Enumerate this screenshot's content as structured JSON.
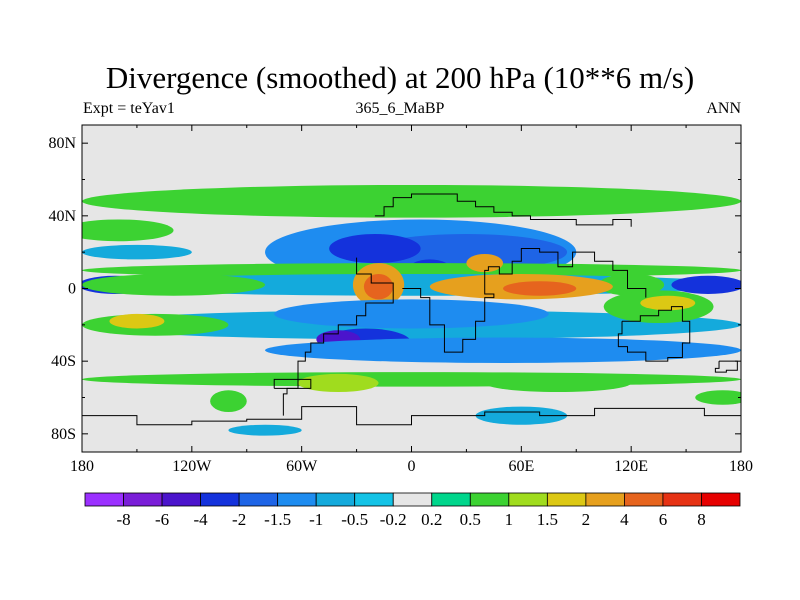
{
  "title": "Divergence (smoothed) at 200 hPa (10**6 m/s)",
  "left_label": "Expt = teYav1",
  "center_label": "365_6_MaBP",
  "right_label": "ANN",
  "chart_data": {
    "type": "heatmap",
    "projection": "cylindrical-equidistant",
    "variable": "Divergence (smoothed) at 200 hPa",
    "units": "10**6 m/s",
    "x_ticks": [
      "180",
      "120W",
      "60W",
      "0",
      "60E",
      "120E",
      "180"
    ],
    "x_tick_values": [
      -180,
      -120,
      -60,
      0,
      60,
      120,
      180
    ],
    "y_ticks": [
      "80N",
      "40N",
      "0",
      "40S",
      "80S"
    ],
    "y_tick_values": [
      80,
      40,
      0,
      -40,
      -80
    ],
    "xlim": [
      -180,
      180
    ],
    "ylim": [
      -90,
      90
    ],
    "colorbar": {
      "levels": [
        "-8",
        "-6",
        "-4",
        "-2",
        "-1.5",
        "-1",
        "-0.5",
        "-0.2",
        "0.2",
        "0.5",
        "1",
        "1.5",
        "2",
        "4",
        "6",
        "8"
      ],
      "colors": [
        "#9b30ff",
        "#7a1ed8",
        "#4b14cc",
        "#1432dc",
        "#1e64e6",
        "#1e8cf0",
        "#14aadc",
        "#14c3e6",
        "#e6e6e6",
        "#00d68c",
        "#3cd232",
        "#a0dc1e",
        "#dcc814",
        "#e6a01e",
        "#e6641e",
        "#e63214",
        "#e60000"
      ]
    },
    "features": [
      {
        "kind": "ellipse",
        "lon": 0,
        "lat": 48,
        "rlon": 180,
        "rlat": 9,
        "value": 0.6
      },
      {
        "kind": "ellipse",
        "lon": -160,
        "lat": 32,
        "rlon": 30,
        "rlat": 6,
        "value": 0.6
      },
      {
        "kind": "ellipse",
        "lon": -150,
        "lat": 20,
        "rlon": 30,
        "rlat": 4,
        "value": -0.8
      },
      {
        "kind": "ellipse",
        "lon": 5,
        "lat": 20,
        "rlon": 85,
        "rlat": 18,
        "value": -1.2
      },
      {
        "kind": "ellipse",
        "lon": 30,
        "lat": 20,
        "rlon": 55,
        "rlat": 10,
        "value": -1.8
      },
      {
        "kind": "ellipse",
        "lon": -20,
        "lat": 22,
        "rlon": 25,
        "rlat": 8,
        "value": -3
      },
      {
        "kind": "ellipse",
        "lon": 10,
        "lat": 10,
        "rlon": 12,
        "rlat": 6,
        "value": -3
      },
      {
        "kind": "ellipse",
        "lon": 0,
        "lat": 10,
        "rlon": 180,
        "rlat": 4,
        "value": 0.7
      },
      {
        "kind": "ellipse",
        "lon": 0,
        "lat": 2,
        "rlon": 180,
        "rlat": 6,
        "value": -0.6
      },
      {
        "kind": "ellipse",
        "lon": -162,
        "lat": 2,
        "rlon": 20,
        "rlat": 5,
        "value": -2.5
      },
      {
        "kind": "ellipse",
        "lon": 162,
        "lat": 2,
        "rlon": 20,
        "rlat": 5,
        "value": -2.5
      },
      {
        "kind": "ellipse",
        "lon": -130,
        "lat": 2,
        "rlon": 50,
        "rlat": 6,
        "value": 0.7
      },
      {
        "kind": "ellipse",
        "lon": 120,
        "lat": 2,
        "rlon": 18,
        "rlat": 6,
        "value": 0.7
      },
      {
        "kind": "ellipse",
        "lon": -18,
        "lat": 2,
        "rlon": 14,
        "rlat": 12,
        "value": 3.5
      },
      {
        "kind": "ellipse",
        "lon": -18,
        "lat": 1,
        "rlon": 8,
        "rlat": 7,
        "value": 5
      },
      {
        "kind": "ellipse",
        "lon": 60,
        "lat": 1,
        "rlon": 50,
        "rlat": 7,
        "value": 2.5
      },
      {
        "kind": "ellipse",
        "lon": 70,
        "lat": 0,
        "rlon": 20,
        "rlat": 4,
        "value": 4.5
      },
      {
        "kind": "ellipse",
        "lon": 40,
        "lat": 14,
        "rlon": 10,
        "rlat": 5,
        "value": 2.2
      },
      {
        "kind": "ellipse",
        "lon": 0,
        "lat": -20,
        "rlon": 180,
        "rlat": 8,
        "value": -0.6
      },
      {
        "kind": "ellipse",
        "lon": 0,
        "lat": -14,
        "rlon": 75,
        "rlat": 8,
        "value": -1.2
      },
      {
        "kind": "ellipse",
        "lon": -140,
        "lat": -20,
        "rlon": 40,
        "rlat": 6,
        "value": 0.7
      },
      {
        "kind": "ellipse",
        "lon": -150,
        "lat": -18,
        "rlon": 15,
        "rlat": 4,
        "value": 1.7
      },
      {
        "kind": "ellipse",
        "lon": -25,
        "lat": -30,
        "rlon": 25,
        "rlat": 8,
        "value": -3
      },
      {
        "kind": "ellipse",
        "lon": -40,
        "lat": -28,
        "rlon": 12,
        "rlat": 5,
        "value": -5
      },
      {
        "kind": "ellipse",
        "lon": 50,
        "lat": -34,
        "rlon": 130,
        "rlat": 7,
        "value": -1.2
      },
      {
        "kind": "ellipse",
        "lon": 135,
        "lat": -10,
        "rlon": 30,
        "rlat": 9,
        "value": 0.7
      },
      {
        "kind": "ellipse",
        "lon": 140,
        "lat": -8,
        "rlon": 15,
        "rlat": 4,
        "value": 1.7
      },
      {
        "kind": "ellipse",
        "lon": 0,
        "lat": -50,
        "rlon": 180,
        "rlat": 4,
        "value": 0.6
      },
      {
        "kind": "ellipse",
        "lon": -40,
        "lat": -52,
        "rlon": 22,
        "rlat": 5,
        "value": 1.2
      },
      {
        "kind": "ellipse",
        "lon": 80,
        "lat": -52,
        "rlon": 40,
        "rlat": 5,
        "value": 0.6
      },
      {
        "kind": "ellipse",
        "lon": 170,
        "lat": -60,
        "rlon": 15,
        "rlat": 4,
        "value": 0.6
      },
      {
        "kind": "ellipse",
        "lon": 60,
        "lat": -70,
        "rlon": 25,
        "rlat": 5,
        "value": -0.6
      },
      {
        "kind": "ellipse",
        "lon": -80,
        "lat": -78,
        "rlon": 20,
        "rlat": 3,
        "value": -0.6
      },
      {
        "kind": "ellipse",
        "lon": -100,
        "lat": -62,
        "rlon": 10,
        "rlat": 6,
        "value": 0.6
      }
    ],
    "coastlines": [
      [
        [
          -20,
          40
        ],
        [
          -15,
          45
        ],
        [
          -10,
          50
        ],
        [
          0,
          52
        ],
        [
          15,
          52
        ],
        [
          25,
          48
        ],
        [
          35,
          45
        ],
        [
          45,
          42
        ],
        [
          55,
          40
        ],
        [
          65,
          38
        ],
        [
          75,
          38
        ],
        [
          90,
          35
        ],
        [
          110,
          38
        ],
        [
          120,
          34
        ]
      ],
      [
        [
          -30,
          17
        ],
        [
          -30,
          8
        ],
        [
          -22,
          3
        ],
        [
          -10,
          3
        ],
        [
          -10,
          -8
        ],
        [
          -20,
          -8
        ],
        [
          -25,
          -15
        ],
        [
          -30,
          -20
        ],
        [
          -40,
          -25
        ],
        [
          -48,
          -30
        ],
        [
          -55,
          -35
        ],
        [
          -58,
          -40
        ],
        [
          -62,
          -55
        ],
        [
          -68,
          -58
        ],
        [
          -70,
          -70
        ]
      ],
      [
        [
          -5,
          0
        ],
        [
          5,
          -5
        ],
        [
          10,
          -20
        ],
        [
          18,
          -35
        ],
        [
          28,
          -28
        ],
        [
          35,
          -18
        ],
        [
          40,
          -5
        ],
        [
          45,
          -3
        ],
        [
          40,
          10
        ],
        [
          42,
          12
        ],
        [
          48,
          8
        ],
        [
          55,
          15
        ],
        [
          60,
          22
        ],
        [
          70,
          20
        ],
        [
          80,
          12
        ],
        [
          88,
          20
        ],
        [
          100,
          15
        ],
        [
          110,
          10
        ],
        [
          118,
          0
        ],
        [
          128,
          -5
        ]
      ],
      [
        [
          115,
          -18
        ],
        [
          125,
          -15
        ],
        [
          135,
          -12
        ],
        [
          142,
          -10
        ],
        [
          148,
          -18
        ],
        [
          152,
          -30
        ],
        [
          148,
          -38
        ],
        [
          140,
          -40
        ],
        [
          128,
          -35
        ],
        [
          118,
          -32
        ],
        [
          113,
          -25
        ],
        [
          115,
          -18
        ]
      ],
      [
        [
          -180,
          -70
        ],
        [
          -150,
          -75
        ],
        [
          -120,
          -73
        ],
        [
          -90,
          -72
        ],
        [
          -60,
          -65
        ],
        [
          -30,
          -75
        ],
        [
          0,
          -70
        ],
        [
          40,
          -68
        ],
        [
          70,
          -70
        ],
        [
          100,
          -66
        ],
        [
          130,
          -66
        ],
        [
          160,
          -70
        ],
        [
          180,
          -72
        ]
      ],
      [
        [
          -75,
          -55
        ],
        [
          -55,
          -55
        ],
        [
          -55,
          -50
        ],
        [
          -72,
          -50
        ],
        [
          -75,
          -55
        ]
      ],
      [
        [
          168,
          -40
        ],
        [
          178,
          -45
        ],
        [
          172,
          -46
        ],
        [
          166,
          -44
        ],
        [
          168,
          -40
        ]
      ]
    ]
  }
}
